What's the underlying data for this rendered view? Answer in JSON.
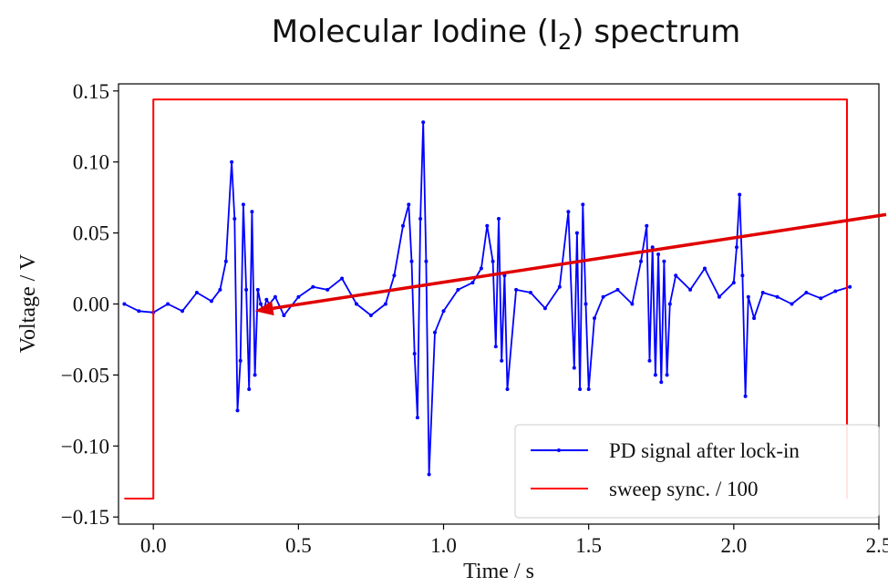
{
  "chart_data": {
    "type": "line",
    "title": "Molecular Iodine (I",
    "title_subscript": "2",
    "title_suffix": ") spectrum",
    "xlabel": "Time / s",
    "ylabel": "Voltage / V",
    "xlim": [
      -0.12,
      2.5
    ],
    "ylim": [
      -0.155,
      0.155
    ],
    "xticks": [
      0.0,
      0.5,
      1.0,
      1.5,
      2.0,
      2.5
    ],
    "xtick_labels": [
      "0.0",
      "0.5",
      "1.0",
      "1.5",
      "2.0",
      "2.5"
    ],
    "yticks": [
      0.15,
      0.1,
      0.05,
      0.0,
      -0.05,
      -0.1,
      -0.15
    ],
    "ytick_labels": [
      "0.15",
      "0.10",
      "0.05",
      "0.00",
      "−0.05",
      "−0.10",
      "−0.15"
    ],
    "grid": false,
    "legend_position": "bottom-right",
    "series": [
      {
        "name": "PD signal after lock-in",
        "color": "#0000ff",
        "marker": "dot",
        "x": [
          -0.1,
          -0.05,
          0.0,
          0.05,
          0.1,
          0.15,
          0.2,
          0.23,
          0.25,
          0.27,
          0.28,
          0.29,
          0.3,
          0.31,
          0.32,
          0.33,
          0.34,
          0.35,
          0.36,
          0.37,
          0.38,
          0.39,
          0.4,
          0.42,
          0.45,
          0.5,
          0.55,
          0.6,
          0.65,
          0.7,
          0.75,
          0.8,
          0.83,
          0.86,
          0.88,
          0.89,
          0.9,
          0.91,
          0.92,
          0.93,
          0.94,
          0.95,
          0.97,
          1.0,
          1.05,
          1.1,
          1.13,
          1.15,
          1.17,
          1.18,
          1.19,
          1.2,
          1.21,
          1.22,
          1.25,
          1.3,
          1.35,
          1.4,
          1.43,
          1.45,
          1.46,
          1.47,
          1.48,
          1.49,
          1.5,
          1.52,
          1.55,
          1.6,
          1.65,
          1.68,
          1.7,
          1.71,
          1.72,
          1.73,
          1.74,
          1.75,
          1.76,
          1.77,
          1.78,
          1.8,
          1.85,
          1.9,
          1.95,
          2.0,
          2.01,
          2.02,
          2.03,
          2.04,
          2.05,
          2.07,
          2.1,
          2.15,
          2.2,
          2.25,
          2.3,
          2.35,
          2.4
        ],
        "y": [
          0.0,
          -0.005,
          -0.006,
          0.0,
          -0.005,
          0.008,
          0.002,
          0.01,
          0.03,
          0.1,
          0.06,
          -0.075,
          -0.04,
          0.07,
          0.01,
          -0.06,
          0.065,
          -0.05,
          0.01,
          0.0,
          -0.005,
          0.003,
          0.0,
          0.005,
          -0.008,
          0.005,
          0.012,
          0.01,
          0.018,
          0.0,
          -0.008,
          0.0,
          0.02,
          0.055,
          0.07,
          0.03,
          -0.035,
          -0.08,
          0.06,
          0.128,
          0.03,
          -0.12,
          -0.02,
          -0.005,
          0.01,
          0.015,
          0.025,
          0.055,
          0.03,
          -0.03,
          0.06,
          -0.04,
          0.02,
          -0.06,
          0.01,
          0.008,
          -0.003,
          0.012,
          0.065,
          -0.045,
          0.05,
          -0.06,
          0.07,
          0.0,
          -0.06,
          -0.01,
          0.005,
          0.01,
          0.0,
          0.03,
          0.055,
          -0.04,
          0.04,
          -0.05,
          0.035,
          -0.055,
          0.03,
          -0.05,
          0.0,
          0.02,
          0.01,
          0.025,
          0.005,
          0.015,
          0.04,
          0.077,
          0.02,
          -0.065,
          0.005,
          -0.01,
          0.008,
          0.005,
          0.0,
          0.008,
          0.004,
          0.009,
          0.012
        ]
      },
      {
        "name": "sweep sync. / 100",
        "color": "#ff0000",
        "x": [
          -0.1,
          0.0,
          0.0,
          2.39,
          2.39
        ],
        "y": [
          -0.137,
          -0.137,
          0.144,
          0.144,
          -0.137
        ]
      }
    ]
  },
  "annotation": {
    "type": "arrow",
    "color": "#e00000",
    "from": [
      2.58,
      0.063
    ],
    "to": [
      0.35,
      -0.005
    ]
  }
}
